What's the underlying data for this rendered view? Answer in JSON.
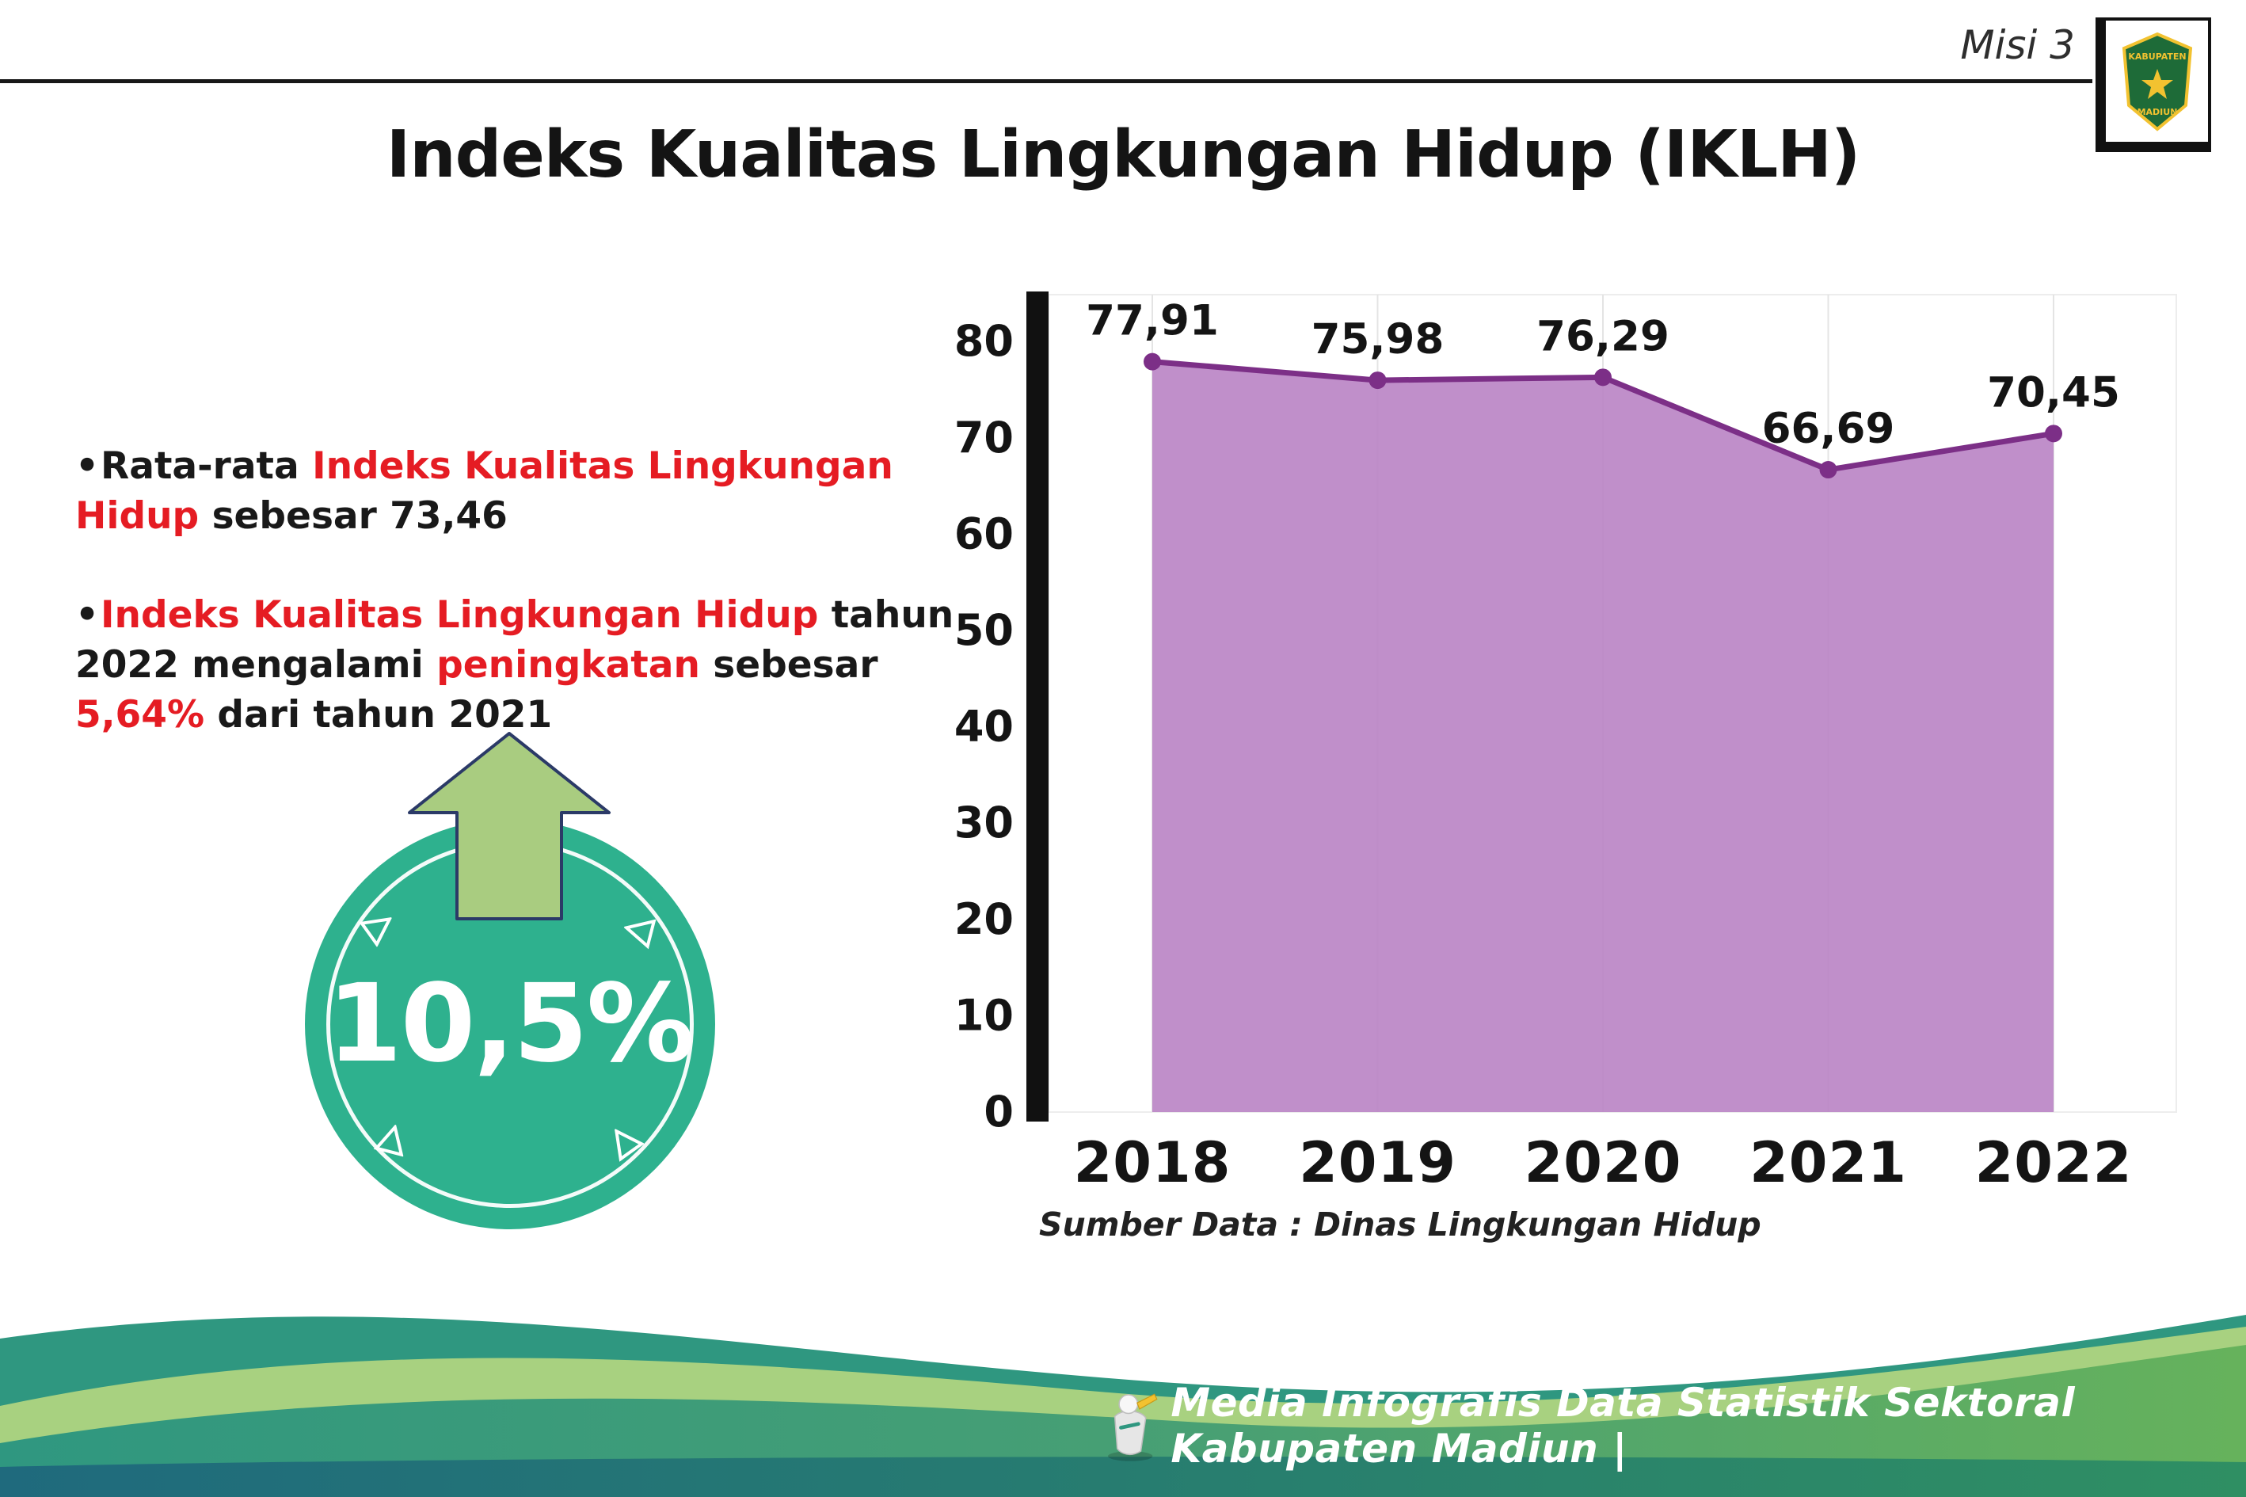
{
  "header": {
    "misi_label": "Misi 3",
    "title": "Indeks Kualitas Lingkungan Hidup (IKLH)"
  },
  "logo": {
    "top_text": "KABUPATEN",
    "bottom_text": "MADIUN"
  },
  "bullets": [
    {
      "marker": "•",
      "parts": [
        {
          "text": "Rata-rata ",
          "red": false
        },
        {
          "text": "Indeks Kualitas Lingkungan Hidup",
          "red": true
        },
        {
          "text": " sebesar 73,46",
          "red": false
        }
      ]
    },
    {
      "marker": "•",
      "parts": [
        {
          "text": "Indeks Kualitas Lingkungan Hidup",
          "red": true
        },
        {
          "text": " tahun 2022 mengalami ",
          "red": false
        },
        {
          "text": "peningkatan",
          "red": true
        },
        {
          "text": " sebesar ",
          "red": false
        },
        {
          "text": "5,64%",
          "red": true
        },
        {
          "text": " dari tahun 2021",
          "red": false
        }
      ]
    }
  ],
  "badge": {
    "value": "10,5%",
    "circle_color": "#2eb18e",
    "arrow_color": "#a9cc80"
  },
  "chart_data": {
    "type": "area",
    "title": "Indeks Kualitas Lingkungan Hidup (IKLH)",
    "categories": [
      "2018",
      "2019",
      "2020",
      "2021",
      "2022"
    ],
    "values": [
      77.91,
      75.98,
      76.29,
      66.69,
      70.45
    ],
    "point_labels": [
      "77,91",
      "75,98",
      "76,29",
      "66,69",
      "70,45"
    ],
    "ylim": [
      0,
      80
    ],
    "yticks": [
      0,
      10,
      20,
      30,
      40,
      50,
      60,
      70,
      80
    ],
    "grid": "light-vertical",
    "legend": "none",
    "area_color": "#bb86c6",
    "line_color": "#7c2f87",
    "source": "Sumber Data : Dinas Lingkungan Hidup"
  },
  "footer": {
    "credit": "Media Infografis Data Statistik Sektoral Kabupaten Madiun |"
  },
  "colors": {
    "accent_red": "#e51c23",
    "axis_black": "#111111",
    "wave_teal": "#2f9780",
    "wave_light_green": "#a8d180",
    "wave_green": "#4f9f63"
  }
}
